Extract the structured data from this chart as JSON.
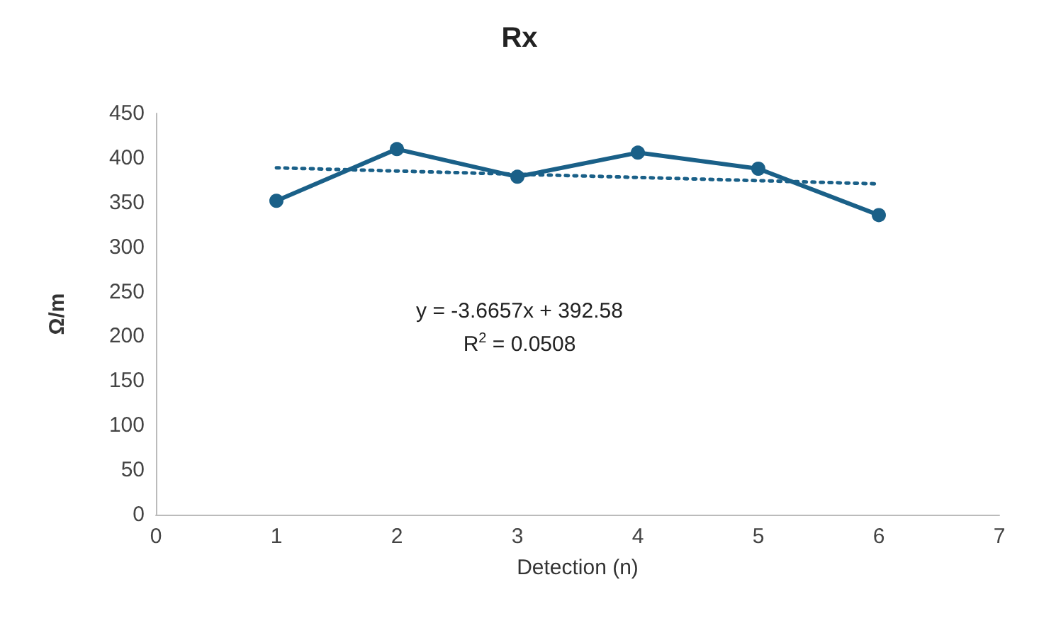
{
  "chart_data": {
    "type": "line",
    "title": "Rx",
    "xlabel": "Detection (n)",
    "ylabel": "Ω/m",
    "x": [
      1,
      2,
      3,
      4,
      5,
      6
    ],
    "series": [
      {
        "color": "#1a6088",
        "values": [
          352,
          410,
          379,
          406,
          388,
          336
        ],
        "marker": "circle",
        "line_style": "solid"
      },
      {
        "type": "line",
        "color": "#1a6088",
        "x": [
          1,
          6
        ],
        "values": [
          389,
          371
        ],
        "marker": "none",
        "line_style": "dotted"
      }
    ],
    "annotations": [
      "y = -3.6657x + 392.58",
      "R$^{2}$ = 0.0508"
    ],
    "xlim": [
      0,
      7
    ],
    "xticks": [
      0,
      1,
      2,
      3,
      4,
      5,
      6,
      7
    ],
    "ylim": [
      0,
      450
    ],
    "yticks": [
      0,
      50,
      100,
      150,
      200,
      250,
      300,
      350,
      400,
      450
    ],
    "grid": false
  }
}
